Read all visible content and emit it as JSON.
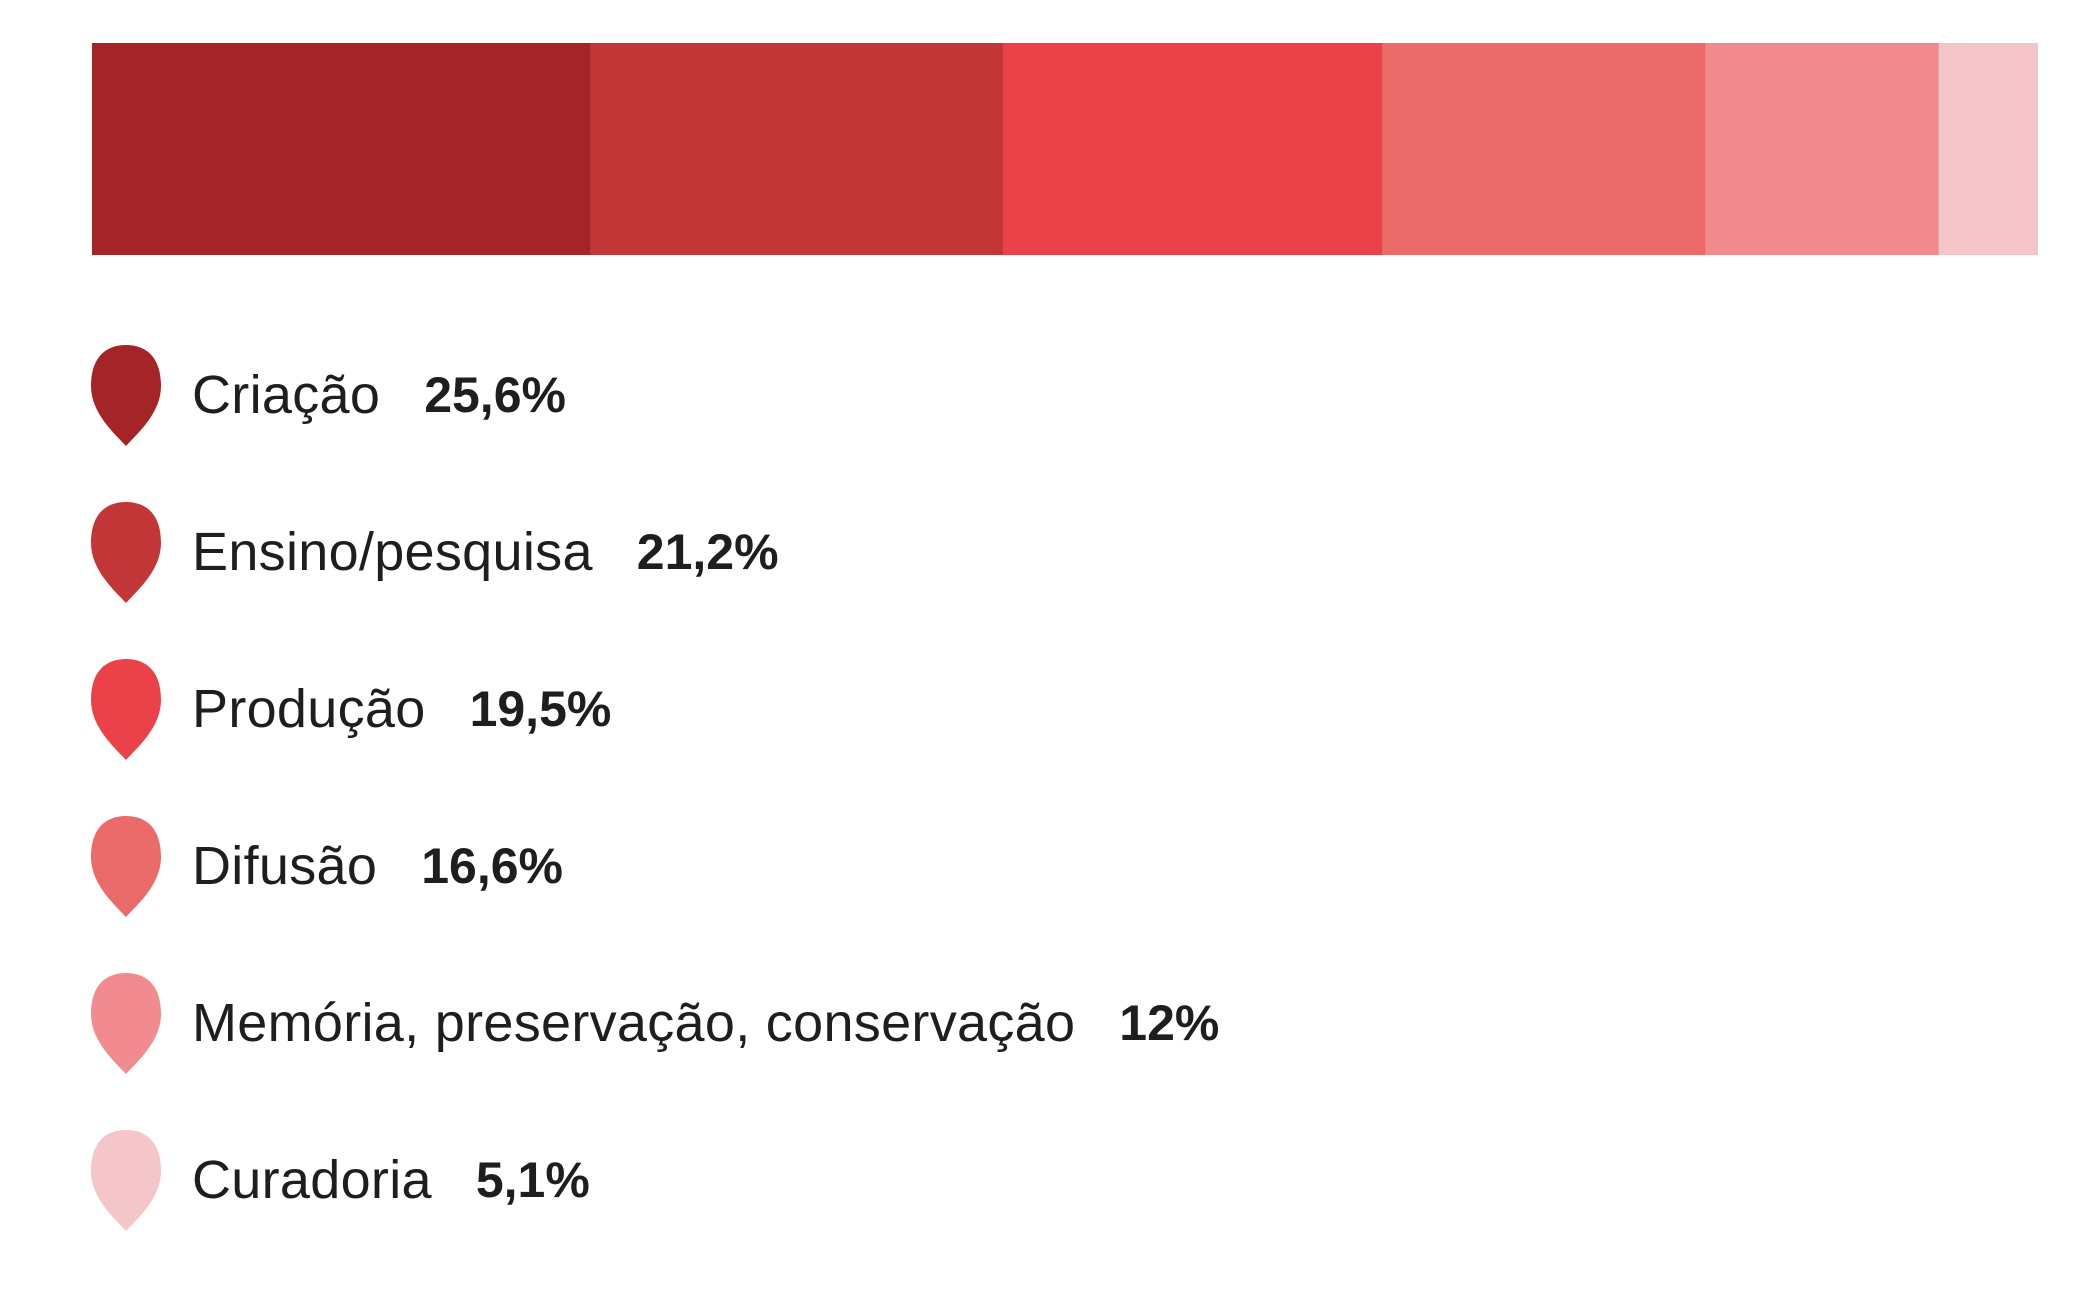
{
  "chart_data": {
    "type": "bar",
    "orientation": "horizontal-stacked",
    "title": "",
    "xlabel": "",
    "ylabel": "",
    "unit": "%",
    "grid": false,
    "legend_position": "bottom",
    "categories": [
      "Criação",
      "Ensino/pesquisa",
      "Produção",
      "Difusão",
      "Memória, preservação, conservação",
      "Curadoria"
    ],
    "values": [
      25.6,
      21.2,
      19.5,
      16.6,
      12,
      5.1
    ],
    "value_labels": [
      "25,6%",
      "21,2%",
      "19,5%",
      "16,6%",
      "12%",
      "5,1%"
    ],
    "colors": [
      "#a52427",
      "#c33638",
      "#eb4149",
      "#eb6a6a",
      "#f28b8f",
      "#f4c5c9"
    ]
  }
}
